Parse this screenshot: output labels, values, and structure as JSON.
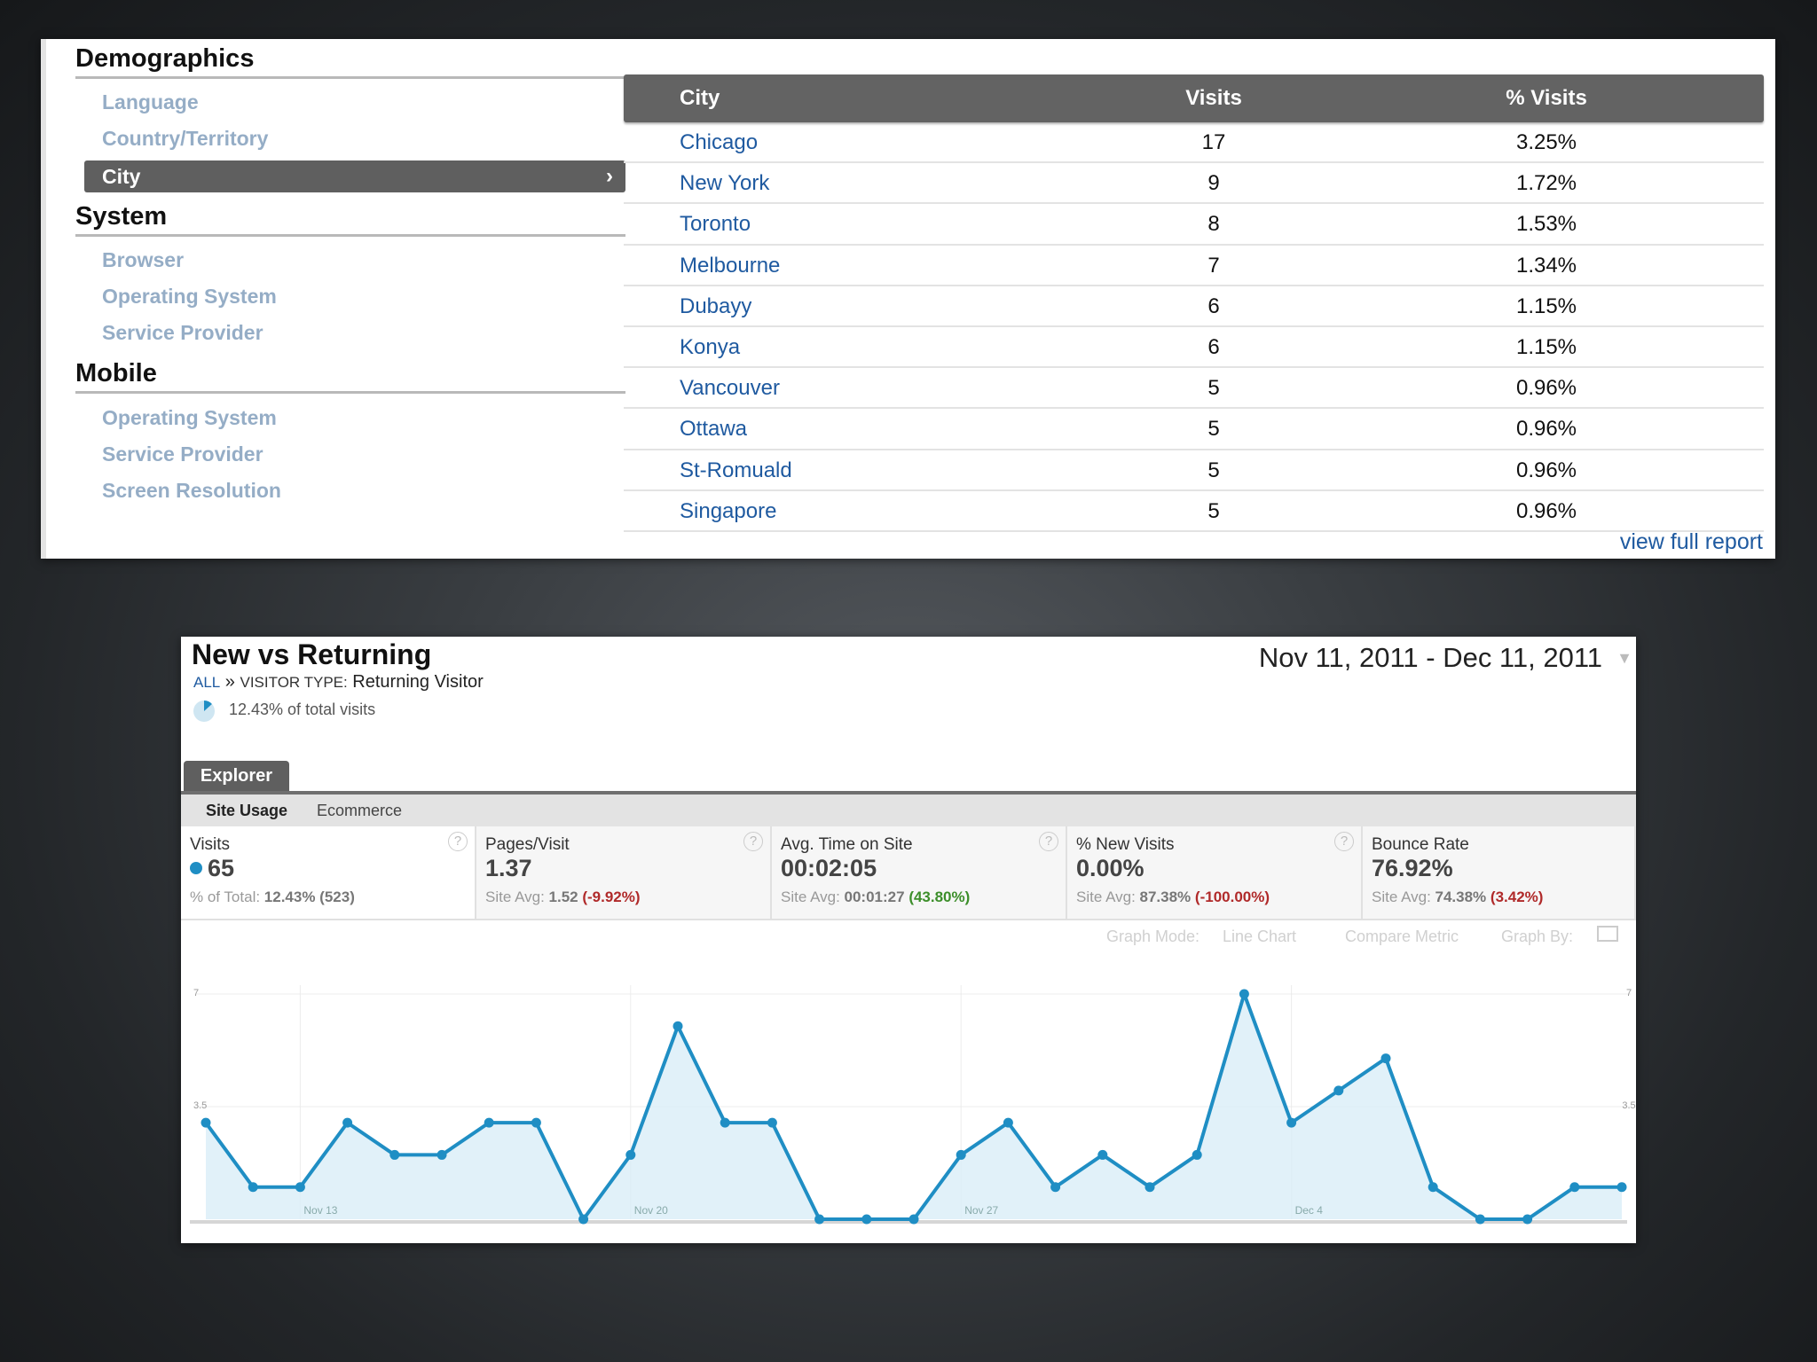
{
  "demographics": {
    "sections": [
      {
        "title": "Demographics",
        "items": [
          "Language",
          "Country/Territory",
          "City"
        ],
        "active": "City"
      },
      {
        "title": "System",
        "items": [
          "Browser",
          "Operating System",
          "Service Provider"
        ]
      },
      {
        "title": "Mobile",
        "items": [
          "Operating System",
          "Service Provider",
          "Screen Resolution"
        ]
      }
    ],
    "table": {
      "headers": [
        "City",
        "Visits",
        "% Visits"
      ],
      "rows": [
        [
          "Chicago",
          "17",
          "3.25%"
        ],
        [
          "New York",
          "9",
          "1.72%"
        ],
        [
          "Toronto",
          "8",
          "1.53%"
        ],
        [
          "Melbourne",
          "7",
          "1.34%"
        ],
        [
          "Dubayy",
          "6",
          "1.15%"
        ],
        [
          "Konya",
          "6",
          "1.15%"
        ],
        [
          "Vancouver",
          "5",
          "0.96%"
        ],
        [
          "Ottawa",
          "5",
          "0.96%"
        ],
        [
          "St-Romuald",
          "5",
          "0.96%"
        ],
        [
          "Singapore",
          "5",
          "0.96%"
        ]
      ],
      "view_full_report": "view full report"
    }
  },
  "report": {
    "title": "New vs Returning",
    "breadcrumb_all": "ALL",
    "breadcrumb_sep": " » ",
    "breadcrumb_label": "VISITOR TYPE:",
    "breadcrumb_value": " Returning Visitor",
    "pct_of_total": "12.43% of total visits",
    "date_start": "Nov 11, 2011",
    "date_sep": " - ",
    "date_end": "Dec 11, 2011",
    "tab": "Explorer",
    "subtabs": [
      "Site Usage",
      "Ecommerce"
    ],
    "metrics": [
      {
        "label": "Visits",
        "value": "65",
        "sub_prefix": "% of Total: ",
        "sub_value": "12.43% (523)",
        "delta": "",
        "delta_type": ""
      },
      {
        "label": "Pages/Visit",
        "value": "1.37",
        "sub_prefix": "Site Avg: ",
        "sub_value": "1.52",
        "delta": "(-9.92%)",
        "delta_type": "neg"
      },
      {
        "label": "Avg. Time on Site",
        "value": "00:02:05",
        "sub_prefix": "Site Avg: ",
        "sub_value": "00:01:27",
        "delta": "(43.80%)",
        "delta_type": "pos"
      },
      {
        "label": "% New Visits",
        "value": "0.00%",
        "sub_prefix": "Site Avg: ",
        "sub_value": "87.38%",
        "delta": "(-100.00%)",
        "delta_type": "neg"
      },
      {
        "label": "Bounce Rate",
        "value": "76.92%",
        "sub_prefix": "Site Avg: ",
        "sub_value": "74.38%",
        "delta": "(3.42%)",
        "delta_type": "neg"
      }
    ],
    "help_glyph": "?",
    "graph_mode_label": "Graph Mode:",
    "graph_mode_value": "Line Chart",
    "compare_metric": "Compare Metric",
    "graph_by": "Graph By:",
    "colors": {
      "line": "#1f8ec4",
      "fill": "#d9edf7",
      "accent": "#5f5f5f"
    }
  },
  "chart_data": {
    "type": "area",
    "x": [
      "Nov 11",
      "Nov 12",
      "Nov 13",
      "Nov 14",
      "Nov 15",
      "Nov 16",
      "Nov 17",
      "Nov 18",
      "Nov 19",
      "Nov 20",
      "Nov 21",
      "Nov 22",
      "Nov 23",
      "Nov 24",
      "Nov 25",
      "Nov 26",
      "Nov 27",
      "Nov 28",
      "Nov 29",
      "Nov 30",
      "Dec 1",
      "Dec 2",
      "Dec 3",
      "Dec 4",
      "Dec 5",
      "Dec 6",
      "Dec 7",
      "Dec 8",
      "Dec 9",
      "Dec 10",
      "Dec 11"
    ],
    "series": [
      {
        "name": "Visits",
        "values": [
          3,
          1,
          1,
          3,
          2,
          2,
          3,
          3,
          0,
          2,
          6,
          3,
          3,
          0,
          0,
          0,
          2,
          3,
          1,
          2,
          1,
          2,
          7,
          3,
          4,
          5,
          1,
          0,
          0,
          1,
          1
        ]
      }
    ],
    "x_tick_labels": [
      "Nov 13",
      "Nov 20",
      "Nov 27",
      "Dec 4"
    ],
    "y_tick_labels": [
      "7",
      "3.5"
    ],
    "ylim": [
      0,
      7
    ],
    "grid": true
  }
}
